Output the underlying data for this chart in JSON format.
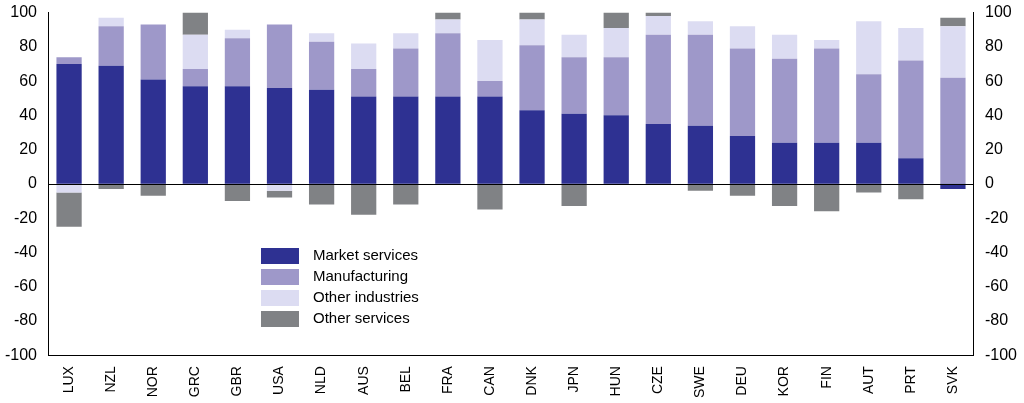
{
  "chart_data": {
    "type": "bar",
    "stacked": true,
    "categories": [
      "LUX",
      "NZL",
      "NOR",
      "GRC",
      "GBR",
      "USA",
      "NLD",
      "AUS",
      "BEL",
      "FRA",
      "CAN",
      "DNK",
      "JPN",
      "HUN",
      "CZE",
      "SWE",
      "DEU",
      "KOR",
      "FIN",
      "AUT",
      "PRT",
      "SVK"
    ],
    "series": [
      {
        "name": "Market services",
        "color": "#2e3192",
        "values": [
          70,
          69,
          61,
          57,
          57,
          56,
          55,
          51,
          51,
          51,
          51,
          43,
          41,
          40,
          35,
          34,
          28,
          24,
          24,
          24,
          15,
          -3
        ]
      },
      {
        "name": "Manufacturing",
        "color": "#9e98c9",
        "values": [
          4,
          23,
          32,
          10,
          28,
          37,
          28,
          16,
          28,
          37,
          9,
          38,
          33,
          34,
          52,
          53,
          51,
          49,
          55,
          40,
          57,
          62
        ]
      },
      {
        "name": "Other industries",
        "color": "#dcdcf2",
        "values": [
          -5,
          5,
          0,
          20,
          5,
          -4,
          5,
          15,
          9,
          8,
          24,
          15,
          13,
          17,
          11,
          8,
          13,
          14,
          5,
          31,
          19,
          30
        ]
      },
      {
        "name": "Other services",
        "color": "#808285",
        "values": [
          -20,
          -3,
          -7,
          13,
          -10,
          -4,
          -12,
          -18,
          -12,
          4,
          -15,
          4,
          -13,
          9,
          2,
          -4,
          -7,
          -13,
          -16,
          -5,
          -9,
          5
        ]
      }
    ],
    "ylim": [
      -100,
      100
    ],
    "yticks": [
      -100,
      -80,
      -60,
      -40,
      -20,
      0,
      20,
      40,
      60,
      80,
      100
    ],
    "y2lim": [
      -100,
      100
    ],
    "y2ticks": [
      -100,
      -80,
      -60,
      -40,
      -20,
      0,
      20,
      40,
      60,
      80,
      100
    ],
    "legend": "bottom left"
  }
}
